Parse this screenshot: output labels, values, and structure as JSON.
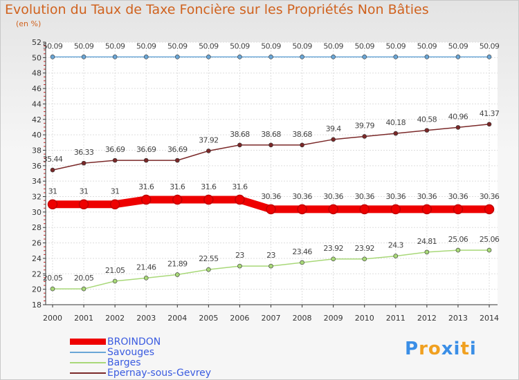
{
  "chart_data": {
    "type": "line",
    "title": "Evolution du Taux de Taxe Foncière sur les Propriétés Non Bâties",
    "ylabel": "(en %)",
    "xlabel": "",
    "ylim": [
      18,
      52
    ],
    "y_ticks": [
      18,
      20,
      22,
      24,
      26,
      28,
      30,
      32,
      34,
      36,
      38,
      40,
      42,
      44,
      46,
      48,
      50,
      52
    ],
    "categories": [
      "2000",
      "2001",
      "2002",
      "2003",
      "2004",
      "2005",
      "2006",
      "2007",
      "2008",
      "2009",
      "2010",
      "2011",
      "2012",
      "2013",
      "2014"
    ],
    "grid": true,
    "legend_position": "bottom-left",
    "series": [
      {
        "name": "BROINDON",
        "color": "#ee0000",
        "emphasis": true,
        "values": [
          31,
          31,
          31,
          31.6,
          31.6,
          31.6,
          31.6,
          30.36,
          30.36,
          30.36,
          30.36,
          30.36,
          30.36,
          30.36,
          30.36
        ],
        "labels": [
          "31",
          "31",
          "31",
          "31.6",
          "31.6",
          "31.6",
          "31.6",
          "30.36",
          "30.36",
          "30.36",
          "30.36",
          "30.36",
          "30.36",
          "30.36",
          "30.36"
        ]
      },
      {
        "name": "Savouges",
        "color": "#6aa6d6",
        "values": [
          50.09,
          50.09,
          50.09,
          50.09,
          50.09,
          50.09,
          50.09,
          50.09,
          50.09,
          50.09,
          50.09,
          50.09,
          50.09,
          50.09,
          50.09
        ],
        "labels": [
          "50.09",
          "50.09",
          "50.09",
          "50.09",
          "50.09",
          "50.09",
          "50.09",
          "50.09",
          "50.09",
          "50.09",
          "50.09",
          "50.09",
          "50.09",
          "50.09",
          "50.09"
        ]
      },
      {
        "name": "Barges",
        "color": "#a8d878",
        "values": [
          20.05,
          20.05,
          21.05,
          21.46,
          21.89,
          22.55,
          23,
          23,
          23.46,
          23.92,
          23.92,
          24.3,
          24.81,
          25.06,
          25.06
        ],
        "labels": [
          "20.05",
          "20.05",
          "21.05",
          "21.46",
          "21.89",
          "22.55",
          "23",
          "23",
          "23.46",
          "23.92",
          "23.92",
          "24.3",
          "24.81",
          "25.06",
          "25.06"
        ]
      },
      {
        "name": "Epernay-sous-Gevrey",
        "color": "#7a2828",
        "values": [
          35.44,
          36.33,
          36.69,
          36.69,
          36.69,
          37.92,
          38.68,
          38.68,
          38.68,
          39.4,
          39.79,
          40.18,
          40.58,
          40.96,
          41.37
        ],
        "labels": [
          "35.44",
          "36.33",
          "36.69",
          "36.69",
          "36.69",
          "37.92",
          "38.68",
          "38.68",
          "38.68",
          "39.4",
          "39.79",
          "40.18",
          "40.58",
          "40.96",
          "41.37"
        ]
      }
    ]
  },
  "brand": {
    "text": "Proxiti",
    "letters": [
      "P",
      "r",
      "o",
      "x",
      "i",
      "t",
      "i"
    ],
    "colors": [
      "#3a8ee6",
      "#f0a020",
      "#f0a020",
      "#3a8ee6",
      "#3a8ee6",
      "#f0a020",
      "#3a8ee6"
    ]
  }
}
